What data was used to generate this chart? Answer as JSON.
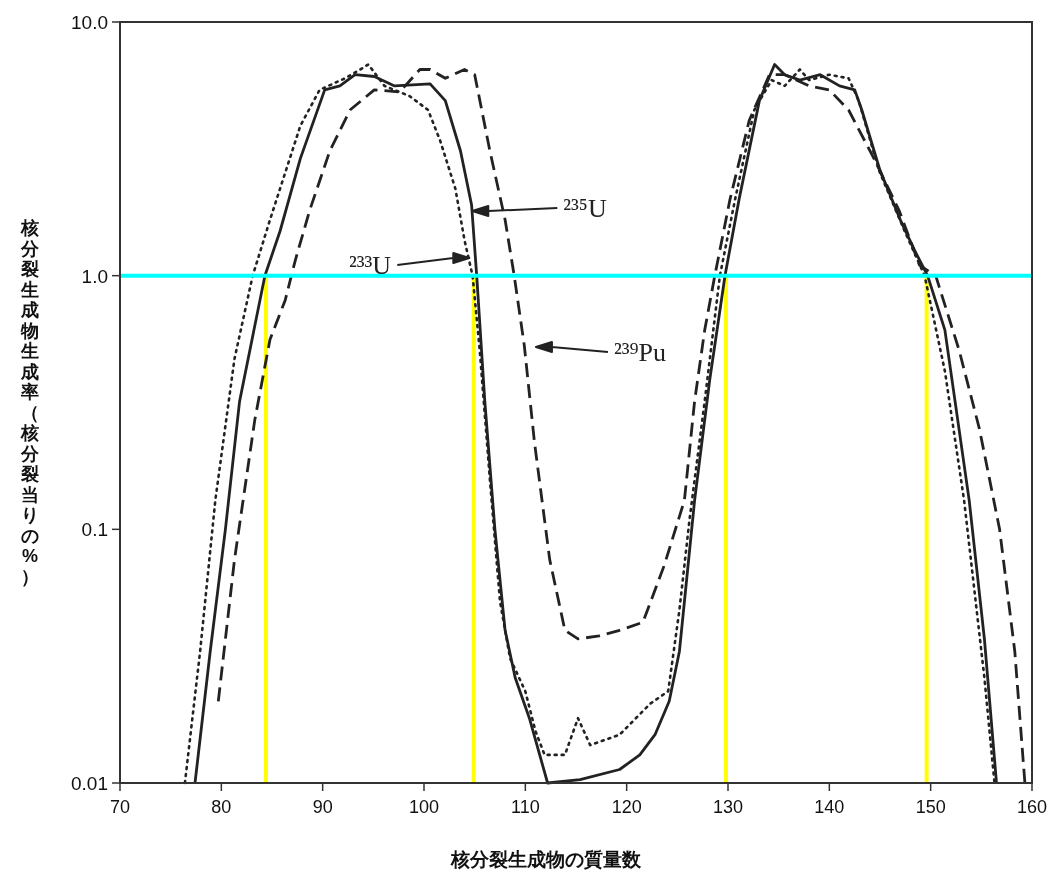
{
  "chart_data": {
    "type": "line",
    "xlabel": "核分裂生成物の質量数",
    "ylabel": "核分裂生成物生成率（核分裂当りの%）",
    "log": "y",
    "grid": false,
    "marker": "none",
    "xlim": [
      70,
      160
    ],
    "xticks": [
      70,
      80,
      90,
      100,
      110,
      120,
      130,
      140,
      150,
      160
    ],
    "ylim": [
      0.01,
      10
    ],
    "yticks": [
      {
        "value": 0.01,
        "label": "0.01"
      },
      {
        "value": 0.1,
        "label": "0.1"
      },
      {
        "value": 1,
        "label": "1.0"
      },
      {
        "value": 10,
        "label": "10.0"
      }
    ],
    "series": [
      {
        "color": "#222222",
        "line_style": "solid",
        "x": [
          77.4,
          78.9,
          80.4,
          81.8,
          84.3,
          85.8,
          87.8,
          90.2,
          91.7,
          93.2,
          95.1,
          97.1,
          100.6,
          102.1,
          103.6,
          104.7,
          105.2,
          106.0,
          107.0,
          108.0,
          109.0,
          110.4,
          112.2,
          115.4,
          119.3,
          121.3,
          122.8,
          124.2,
          125.2,
          126.7,
          128.2,
          129.7,
          131.1,
          133.1,
          134.6,
          135.6,
          137.1,
          139.1,
          141.0,
          142.5,
          143.2,
          145.0,
          147.0,
          148.4,
          149.7,
          151.4,
          153.8,
          155.3,
          156.5
        ],
        "values": [
          0.01,
          0.033,
          0.1,
          0.32,
          1.0,
          1.5,
          2.9,
          5.4,
          5.6,
          6.2,
          6.1,
          5.6,
          5.7,
          4.9,
          3.1,
          1.9,
          1.0,
          0.32,
          0.1,
          0.04,
          0.026,
          0.018,
          0.01,
          0.0103,
          0.0113,
          0.0129,
          0.0155,
          0.021,
          0.033,
          0.13,
          0.39,
          1.0,
          2.0,
          4.9,
          6.8,
          6.2,
          5.9,
          6.2,
          5.6,
          5.4,
          4.5,
          2.6,
          1.66,
          1.26,
          1.0,
          0.61,
          0.13,
          0.037,
          0.01
        ]
      },
      {
        "color": "#222222",
        "line_style": "dotted",
        "x": [
          76.4,
          77.9,
          79.4,
          81.3,
          83.1,
          84.8,
          87.8,
          89.7,
          92.2,
          93.7,
          94.5,
          96.1,
          98.6,
          100.4,
          101.6,
          103.1,
          104.0,
          104.8,
          105.5,
          106.5,
          107.5,
          108.5,
          110.0,
          111.0,
          111.9,
          113.9,
          115.2,
          116.4,
          119.3,
          122.3,
          124.1,
          125.2,
          126.2,
          127.7,
          129.2,
          130.7,
          132.6,
          134.3,
          135.6,
          137.1,
          138.0,
          140.0,
          141.9,
          142.9,
          144.9,
          147.4,
          149.4,
          151.4,
          153.3,
          155.3,
          156.3
        ],
        "values": [
          0.01,
          0.033,
          0.13,
          0.47,
          1.0,
          1.66,
          3.9,
          5.4,
          6.0,
          6.5,
          6.8,
          5.6,
          5.1,
          4.5,
          3.4,
          2.2,
          1.38,
          1.0,
          0.51,
          0.157,
          0.052,
          0.031,
          0.023,
          0.016,
          0.0129,
          0.0129,
          0.018,
          0.0141,
          0.0155,
          0.0205,
          0.023,
          0.048,
          0.109,
          0.32,
          1.0,
          2.0,
          4.5,
          5.9,
          5.6,
          6.5,
          5.9,
          6.2,
          6.0,
          4.9,
          2.6,
          1.51,
          1.0,
          0.42,
          0.13,
          0.026,
          0.01
        ]
      },
      {
        "color": "#222222",
        "line_style": "dashed",
        "x": [
          79.7,
          81.3,
          83.3,
          84.8,
          86.3,
          87.3,
          88.7,
          90.7,
          92.7,
          95.1,
          97.6,
          99.6,
          100.6,
          102.1,
          104.0,
          105.0,
          106.5,
          108.0,
          108.9,
          109.9,
          110.9,
          112.4,
          113.9,
          115.2,
          117.3,
          119.3,
          121.6,
          123.7,
          125.7,
          126.7,
          127.7,
          128.7,
          130.2,
          132.1,
          134.1,
          135.6,
          138.0,
          140.0,
          141.9,
          144.4,
          146.9,
          148.9,
          150.5,
          152.8,
          154.8,
          156.8,
          158.3,
          159.3
        ],
        "values": [
          0.021,
          0.076,
          0.27,
          0.56,
          0.8,
          1.15,
          1.8,
          3.1,
          4.5,
          5.4,
          5.3,
          6.5,
          6.5,
          6.0,
          6.5,
          6.2,
          3.1,
          1.66,
          1.0,
          0.53,
          0.22,
          0.076,
          0.04,
          0.037,
          0.038,
          0.04,
          0.043,
          0.072,
          0.13,
          0.32,
          0.61,
          1.0,
          2.0,
          4.1,
          6.2,
          6.2,
          5.6,
          5.4,
          4.5,
          2.9,
          1.8,
          1.1,
          1.0,
          0.51,
          0.25,
          0.1,
          0.033,
          0.01
        ]
      }
    ],
    "annotations": [
      "²³⁵U",
      "²³³U",
      "²³⁹Pu"
    ],
    "ref_lines": [
      {
        "axis": "y",
        "value": 1,
        "color": "#00ffff"
      },
      {
        "axis": "x",
        "value": 84.4,
        "color": "#ffff00"
      },
      {
        "axis": "x",
        "value": 104.9,
        "color": "#ffff00"
      },
      {
        "axis": "x",
        "value": 129.8,
        "color": "#ffff00"
      },
      {
        "axis": "x",
        "value": 149.6,
        "color": "#ffff00"
      }
    ]
  }
}
